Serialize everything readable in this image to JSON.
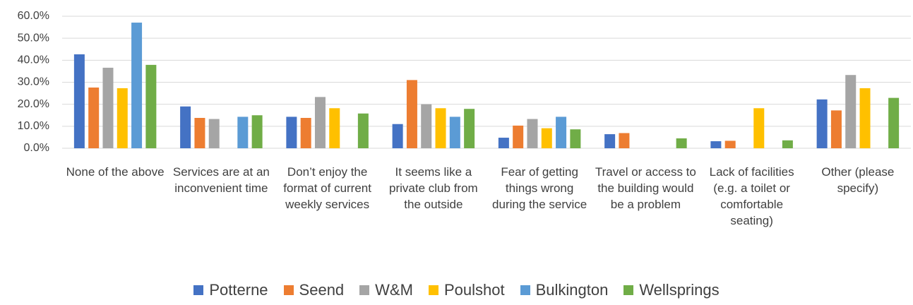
{
  "chart_data": {
    "type": "bar",
    "categories": [
      "None of the above",
      "Services are at an inconvenient time",
      "Don’t enjoy the format of current weekly services",
      "It seems like a private club from the outside",
      "Fear of getting things wrong during the service",
      "Travel or access to the building would be a problem",
      "Lack of facilities (e.g. a toilet or comfortable seating)",
      "Other (please specify)"
    ],
    "series": [
      {
        "name": "Potterne",
        "color": "#4472c4",
        "values": [
          42.7,
          19.0,
          14.3,
          11.0,
          4.8,
          6.4,
          3.2,
          22.2
        ]
      },
      {
        "name": "Seend",
        "color": "#ed7d31",
        "values": [
          27.6,
          13.8,
          13.8,
          31.0,
          10.3,
          6.9,
          3.4,
          17.2
        ]
      },
      {
        "name": "W&M",
        "color": "#a5a5a5",
        "values": [
          36.6,
          13.3,
          23.3,
          20.0,
          13.3,
          0,
          0,
          33.3
        ]
      },
      {
        "name": "Poulshot",
        "color": "#ffc000",
        "values": [
          27.3,
          0,
          18.2,
          18.2,
          9.1,
          0,
          18.2,
          27.3
        ]
      },
      {
        "name": "Bulkington",
        "color": "#5b9bd5",
        "values": [
          57.1,
          14.3,
          0,
          14.3,
          14.3,
          0,
          0,
          0
        ]
      },
      {
        "name": "Wellsprings",
        "color": "#70ad47",
        "values": [
          37.9,
          15.0,
          15.8,
          17.9,
          8.6,
          4.5,
          3.6,
          22.9
        ]
      }
    ],
    "ylim": [
      0,
      60
    ],
    "yticks": [
      {
        "value": 0,
        "label": "0.0%"
      },
      {
        "value": 10,
        "label": "10.0%"
      },
      {
        "value": 20,
        "label": "20.0%"
      },
      {
        "value": 30,
        "label": "30.0%"
      },
      {
        "value": 40,
        "label": "40.0%"
      },
      {
        "value": 50,
        "label": "50.0%"
      },
      {
        "value": 60,
        "label": "60.0%"
      }
    ],
    "grid": true,
    "legend": "bottom"
  }
}
